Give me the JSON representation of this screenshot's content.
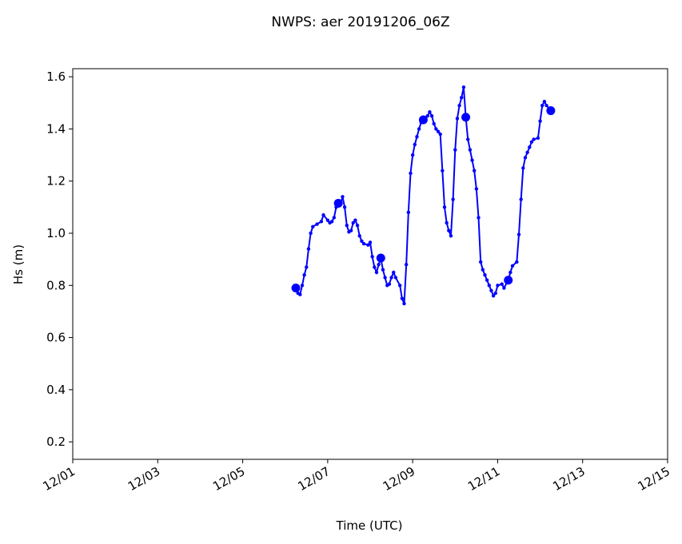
{
  "chart_data": {
    "type": "line",
    "title": "NWPS: aer 20191206_06Z",
    "x_label": "Time (UTC)",
    "y_label": "Hs (m)",
    "x": [
      6.25,
      6.3,
      6.35,
      6.4,
      6.45,
      6.5,
      6.55,
      6.6,
      6.65,
      6.75,
      6.85,
      6.9,
      7.0,
      7.05,
      7.1,
      7.15,
      7.2,
      7.25,
      7.3,
      7.35,
      7.4,
      7.45,
      7.5,
      7.55,
      7.6,
      7.65,
      7.7,
      7.75,
      7.8,
      7.85,
      7.95,
      8.0,
      8.05,
      8.1,
      8.15,
      8.2,
      8.25,
      8.3,
      8.35,
      8.4,
      8.45,
      8.5,
      8.55,
      8.6,
      8.7,
      8.75,
      8.8,
      8.85,
      8.9,
      8.95,
      9.0,
      9.05,
      9.1,
      9.15,
      9.2,
      9.25,
      9.3,
      9.35,
      9.4,
      9.45,
      9.5,
      9.55,
      9.6,
      9.65,
      9.7,
      9.75,
      9.8,
      9.85,
      9.9,
      9.95,
      10.0,
      10.05,
      10.1,
      10.15,
      10.2,
      10.25,
      10.3,
      10.35,
      10.4,
      10.45,
      10.5,
      10.55,
      10.6,
      10.65,
      10.7,
      10.75,
      10.8,
      10.85,
      10.9,
      10.95,
      11.0,
      11.1,
      11.15,
      11.25,
      11.3,
      11.35,
      11.45,
      11.5,
      11.55,
      11.6,
      11.65,
      11.7,
      11.75,
      11.8,
      11.85,
      11.95,
      12.0,
      12.05,
      12.1,
      12.15,
      12.25
    ],
    "series": [
      {
        "name": "Hs",
        "color": "#0000ff",
        "values": [
          0.79,
          0.77,
          0.765,
          0.8,
          0.84,
          0.87,
          0.94,
          1.0,
          1.025,
          1.035,
          1.045,
          1.07,
          1.05,
          1.04,
          1.045,
          1.06,
          1.1,
          1.115,
          1.11,
          1.14,
          1.1,
          1.03,
          1.005,
          1.01,
          1.04,
          1.05,
          1.03,
          0.99,
          0.97,
          0.96,
          0.955,
          0.965,
          0.91,
          0.87,
          0.85,
          0.88,
          0.905,
          0.86,
          0.83,
          0.8,
          0.805,
          0.83,
          0.85,
          0.83,
          0.8,
          0.75,
          0.73,
          0.88,
          1.08,
          1.23,
          1.3,
          1.34,
          1.37,
          1.4,
          1.425,
          1.435,
          1.44,
          1.45,
          1.465,
          1.45,
          1.42,
          1.4,
          1.39,
          1.38,
          1.24,
          1.1,
          1.04,
          1.01,
          0.99,
          1.13,
          1.32,
          1.44,
          1.49,
          1.52,
          1.56,
          1.445,
          1.36,
          1.32,
          1.28,
          1.24,
          1.17,
          1.06,
          0.89,
          0.86,
          0.84,
          0.82,
          0.8,
          0.78,
          0.76,
          0.77,
          0.8,
          0.805,
          0.79,
          0.82,
          0.85,
          0.875,
          0.89,
          0.995,
          1.13,
          1.25,
          1.29,
          1.31,
          1.33,
          1.35,
          1.36,
          1.365,
          1.43,
          1.49,
          1.505,
          1.49,
          1.47
        ]
      }
    ],
    "xlim": [
      1,
      15
    ],
    "xticks": [
      {
        "value": 1,
        "label": "12/01"
      },
      {
        "value": 3,
        "label": "12/03"
      },
      {
        "value": 5,
        "label": "12/05"
      },
      {
        "value": 7,
        "label": "12/07"
      },
      {
        "value": 9,
        "label": "12/09"
      },
      {
        "value": 11,
        "label": "12/11"
      },
      {
        "value": 13,
        "label": "12/13"
      },
      {
        "value": 15,
        "label": "12/15"
      }
    ],
    "ylim": [
      0.133,
      1.631
    ],
    "yticks": [
      0.2,
      0.4,
      0.6,
      0.8,
      {
        "value": 1.0,
        "label": "1.0"
      },
      1.2,
      1.4,
      1.6
    ]
  }
}
